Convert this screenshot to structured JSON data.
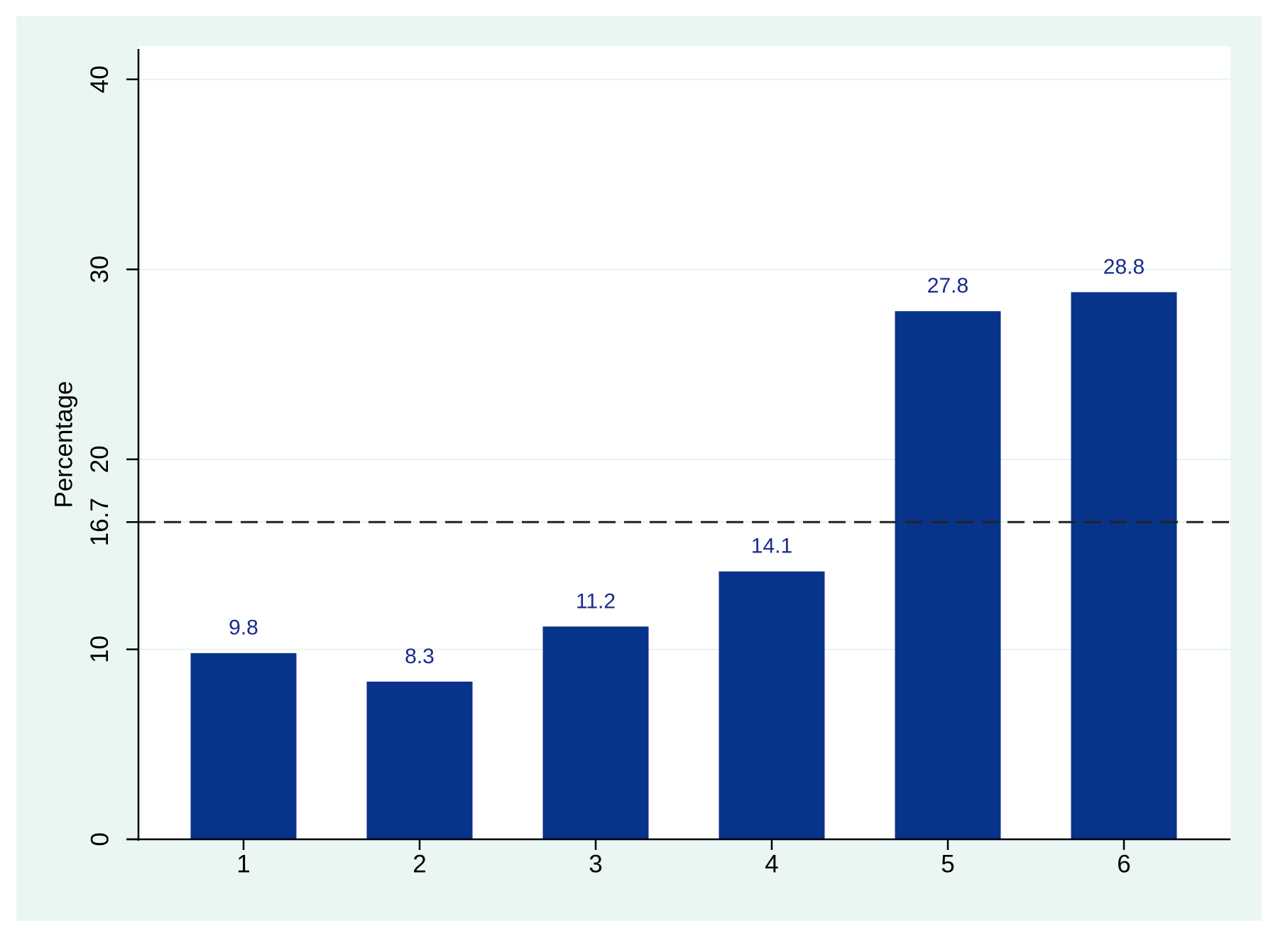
{
  "chart_data": {
    "type": "bar",
    "y_label": "Percentage",
    "categories": [
      "1",
      "2",
      "3",
      "4",
      "5",
      "6"
    ],
    "values": [
      9.8,
      8.3,
      11.2,
      14.1,
      27.8,
      28.8
    ],
    "color": "#08338a",
    "ylim": [
      0,
      41.6
    ],
    "yticks": [
      0,
      10,
      16.7,
      20,
      30,
      40
    ],
    "hline": 16.7,
    "grid": true
  }
}
